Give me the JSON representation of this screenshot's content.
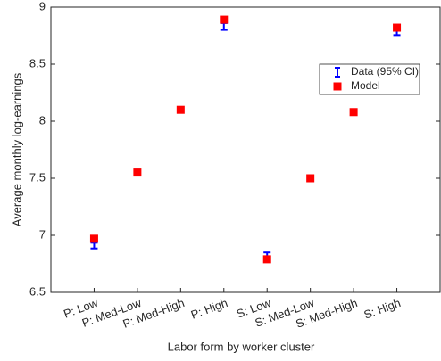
{
  "chart_data": {
    "type": "errorbar",
    "xlabel": "Labor form by worker cluster",
    "ylabel": "Average monthly log-earnings",
    "categories": [
      "P: Low",
      "P: Med-Low",
      "P: Med-High",
      "P: High",
      "S: Low",
      "S: Med-Low",
      "S: Med-High",
      "S: High"
    ],
    "series": [
      {
        "name": "Data (95% CI)",
        "color": "#0000ff",
        "values": [
          6.91,
          7.56,
          8.1,
          8.83,
          6.83,
          7.5,
          8.07,
          8.78
        ],
        "errors": [
          0.025,
          0.015,
          0.01,
          0.03,
          0.02,
          0.01,
          0.015,
          0.025
        ]
      },
      {
        "name": "Model",
        "color": "#ff0000",
        "values": [
          6.97,
          7.55,
          8.1,
          8.89,
          6.79,
          7.5,
          8.08,
          8.82
        ]
      }
    ],
    "ylim": [
      6.5,
      9
    ],
    "yticks": [
      {
        "value": 6.5,
        "label": "6.5"
      },
      7,
      {
        "value": 7.5,
        "label": "7.5"
      },
      8,
      {
        "value": 8.5,
        "label": "8.5"
      },
      9
    ],
    "legend": "upper right"
  }
}
